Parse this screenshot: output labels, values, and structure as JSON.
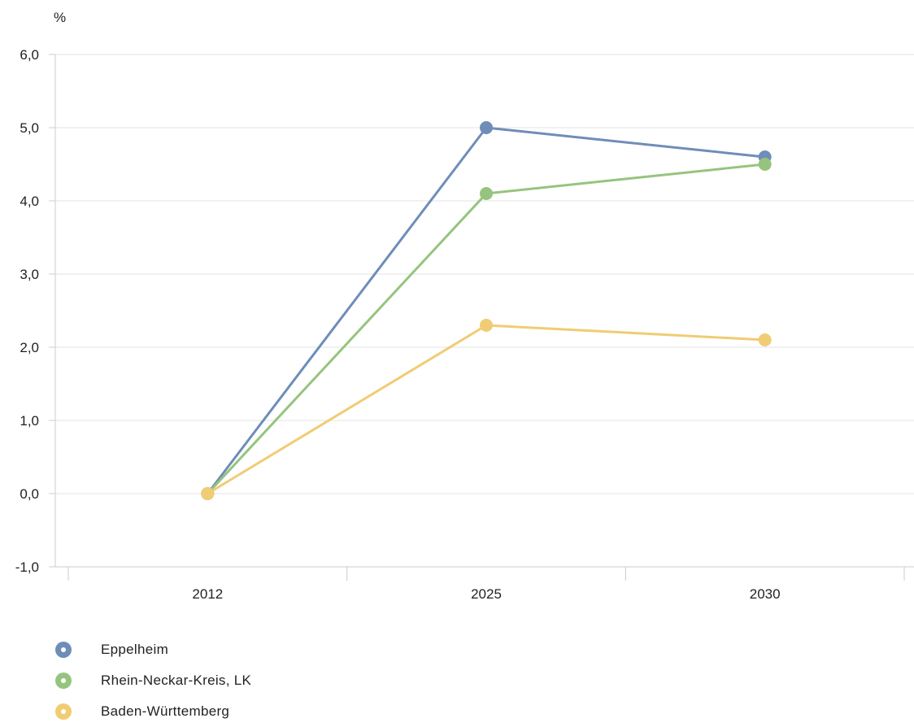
{
  "chart_data": {
    "type": "line",
    "ylabel": "%",
    "categories": [
      "2012",
      "2025",
      "2030"
    ],
    "ylim": [
      -1.0,
      6.0
    ],
    "yticks": [
      "-1,0",
      "0,0",
      "1,0",
      "2,0",
      "3,0",
      "4,0",
      "5,0",
      "6,0"
    ],
    "grid": true,
    "legend_position": "bottom-left",
    "series": [
      {
        "name": "Eppelheim",
        "color": "#6f8db8",
        "values": [
          0.0,
          5.0,
          4.6
        ]
      },
      {
        "name": "Rhein-Neckar-Kreis, LK",
        "color": "#96c47e",
        "values": [
          0.0,
          4.1,
          4.5
        ]
      },
      {
        "name": "Baden-Württemberg",
        "color": "#f0cc74",
        "values": [
          0.0,
          2.3,
          2.1
        ]
      }
    ]
  }
}
